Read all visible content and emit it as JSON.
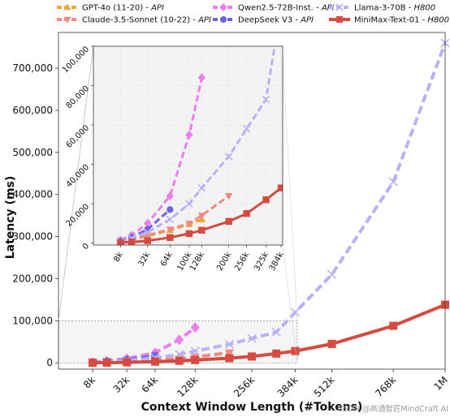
{
  "chart_data": {
    "type": "line",
    "xlabel": "Context Window Length (#Tokens)",
    "ylabel": "Latency (ms)",
    "x_scale": "sqrt",
    "main": {
      "xlim": [
        0,
        1048576
      ],
      "ylim": [
        -15000,
        785000
      ],
      "xticks": [
        8192,
        32768,
        65536,
        131072,
        262144,
        393216,
        524288,
        786432,
        1048576
      ],
      "xticklabels": [
        "8k",
        "32k",
        "64k",
        "128k",
        "256k",
        "384k",
        "512k",
        "768k",
        "1M"
      ],
      "yticks": [
        0,
        100000,
        200000,
        300000,
        400000,
        500000,
        600000,
        700000
      ],
      "yticklabels": [
        "0",
        "100,000",
        "200,000",
        "300,000",
        "400,000",
        "500,000",
        "600,000",
        "700,000"
      ]
    },
    "inset": {
      "xlim": [
        0,
        400000
      ],
      "ylim": [
        -1000,
        100000
      ],
      "xticks": [
        8192,
        32768,
        65536,
        102400,
        131072,
        204800,
        262144,
        332800,
        393216
      ],
      "xticklabels": [
        "8k",
        "32k",
        "64k",
        "100k",
        "128k",
        "200k",
        "256k",
        "325k",
        "384k"
      ],
      "yticks": [
        0,
        20000,
        40000,
        60000,
        80000,
        100000
      ],
      "yticklabels": [
        "0",
        "20,000",
        "40,000",
        "60,000",
        "80,000",
        "100,000"
      ],
      "zoom_box": {
        "x": [
          0,
          400000
        ],
        "y": [
          -1000,
          100000
        ]
      }
    },
    "series": [
      {
        "name": "GPT-4o (11-20) - API",
        "color": "#e8a838",
        "marker": "triangle-up",
        "dash": true,
        "x": [
          8192,
          16384,
          32768,
          65536,
          102400,
          131072
        ],
        "y": [
          900,
          1800,
          3500,
          6500,
          9500,
          12000
        ]
      },
      {
        "name": "Claude-3.5-Sonnet (10-22) - API",
        "color": "#f08a80",
        "marker": "triangle-down",
        "dash": true,
        "x": [
          8192,
          16384,
          32768,
          65536,
          102400,
          131072,
          204800
        ],
        "y": [
          1000,
          2000,
          4000,
          7000,
          10000,
          14000,
          24000
        ]
      },
      {
        "name": "Qwen2.5-72B-Inst. - API",
        "color": "#ec7ef0",
        "marker": "diamond",
        "dash": true,
        "x": [
          8192,
          16384,
          32768,
          65536,
          102400,
          131072
        ],
        "y": [
          1500,
          4000,
          10000,
          24000,
          55000,
          84000
        ]
      },
      {
        "name": "DeepSeek V3 - API",
        "color": "#7065e0",
        "marker": "circle",
        "dash": true,
        "x": [
          8192,
          16384,
          32768,
          65536
        ],
        "y": [
          1000,
          3000,
          7000,
          17000
        ]
      },
      {
        "name": "Llama-3-70B - H800",
        "color": "#b8b2f4",
        "marker": "x",
        "dash": true,
        "x": [
          8192,
          16384,
          32768,
          65536,
          102400,
          131072,
          204800,
          262144,
          332800,
          393216,
          524288,
          786432,
          1048576
        ],
        "y": [
          1000,
          2500,
          5500,
          12000,
          20000,
          28000,
          44000,
          58000,
          73000,
          120000,
          210000,
          430000,
          760000
        ]
      },
      {
        "name": "MiniMax-Text-01 - H800",
        "color": "#d64a40",
        "marker": "square",
        "dash": false,
        "x": [
          8192,
          16384,
          32768,
          65536,
          102400,
          131072,
          204800,
          262144,
          332800,
          393216,
          524288,
          786432,
          1048576
        ],
        "y": [
          200,
          500,
          1200,
          2800,
          4800,
          6500,
          11000,
          15000,
          22000,
          28000,
          45000,
          88000,
          138000
        ]
      }
    ],
    "legend_placement": "top"
  },
  "watermark": "CSDN @高通智匠MindCraft AI"
}
